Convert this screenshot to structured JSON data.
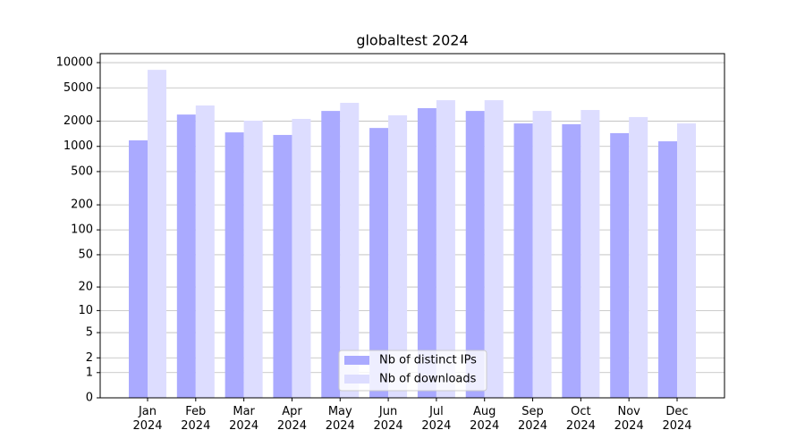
{
  "chart_data": {
    "type": "bar",
    "title": "globaltest 2024",
    "scale": "log1p",
    "grid": true,
    "legend": "lower center",
    "categories": [
      "Jan\n2024",
      "Feb\n2024",
      "Mar\n2024",
      "Apr\n2024",
      "May\n2024",
      "Jun\n2024",
      "Jul\n2024",
      "Aug\n2024",
      "Sep\n2024",
      "Oct\n2024",
      "Nov\n2024",
      "Dec\n2024"
    ],
    "series": [
      {
        "name": "Nb of distinct IPs",
        "color": "#aaaaff",
        "values": [
          1180,
          2400,
          1470,
          1370,
          2650,
          1660,
          2860,
          2650,
          1880,
          1840,
          1440,
          1150
        ]
      },
      {
        "name": "Nb of downloads",
        "color": "#ddddff",
        "values": [
          8200,
          3080,
          2030,
          2130,
          3310,
          2350,
          3560,
          3560,
          2650,
          2720,
          2240,
          1880
        ]
      }
    ],
    "ylim": [
      0,
      12800
    ],
    "yticks": [
      0,
      1,
      2,
      5,
      10,
      20,
      50,
      100,
      200,
      500,
      1000,
      2000,
      5000,
      10000
    ]
  }
}
